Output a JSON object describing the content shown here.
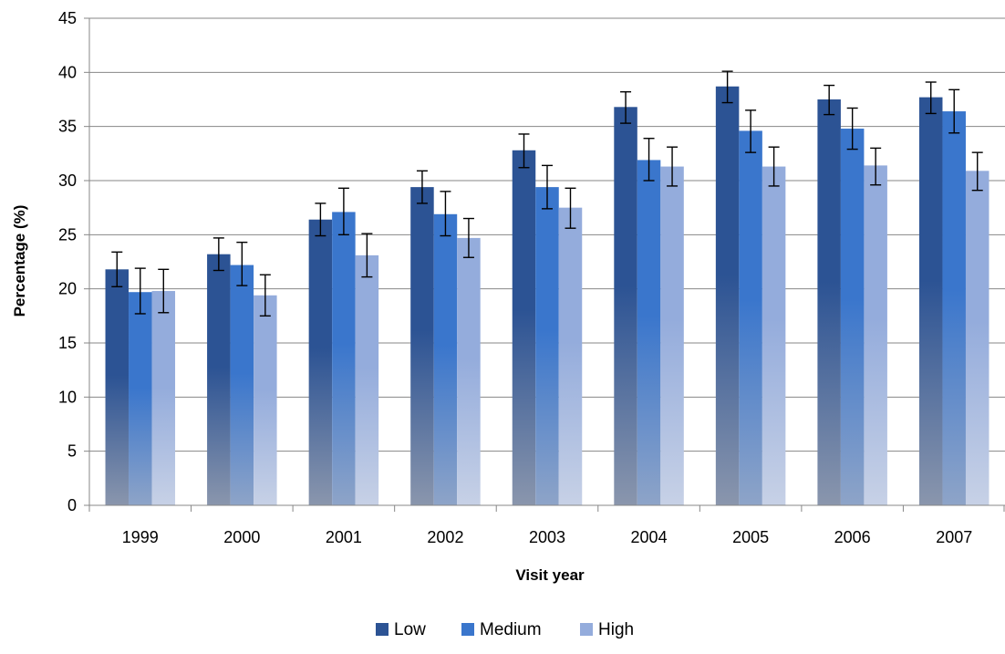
{
  "chart_data": {
    "type": "bar",
    "title": "",
    "xlabel": "Visit year",
    "ylabel": "Percentage (%)",
    "ylim": [
      0,
      45
    ],
    "yticks": [
      0,
      5,
      10,
      15,
      20,
      25,
      30,
      35,
      40,
      45
    ],
    "grid": true,
    "legend_position": "bottom",
    "error_bars": true,
    "categories": [
      "1999",
      "2000",
      "2001",
      "2002",
      "2003",
      "2004",
      "2005",
      "2006",
      "2007"
    ],
    "series": [
      {
        "name": "Low",
        "color": "#2c5394",
        "values": [
          21.8,
          23.2,
          26.4,
          29.4,
          32.8,
          36.8,
          38.7,
          37.5,
          37.7
        ],
        "error_low": [
          20.2,
          21.7,
          24.9,
          27.9,
          31.2,
          35.3,
          37.2,
          36.1,
          36.2
        ],
        "error_high": [
          23.4,
          24.7,
          27.9,
          30.9,
          34.3,
          38.2,
          40.1,
          38.8,
          39.1
        ]
      },
      {
        "name": "Medium",
        "color": "#3a76cc",
        "values": [
          19.7,
          22.2,
          27.1,
          26.9,
          29.4,
          31.9,
          34.6,
          34.8,
          36.4
        ],
        "error_low": [
          17.7,
          20.3,
          25.0,
          24.9,
          27.4,
          30.0,
          32.6,
          32.9,
          34.4
        ],
        "error_high": [
          21.9,
          24.3,
          29.3,
          29.0,
          31.4,
          33.9,
          36.5,
          36.7,
          38.4
        ]
      },
      {
        "name": "High",
        "color": "#94acdc",
        "values": [
          19.8,
          19.4,
          23.1,
          24.7,
          27.5,
          31.3,
          31.3,
          31.4,
          30.9
        ],
        "error_low": [
          17.8,
          17.5,
          21.1,
          22.9,
          25.6,
          29.5,
          29.5,
          29.6,
          29.1
        ],
        "error_high": [
          21.8,
          21.3,
          25.1,
          26.5,
          29.3,
          33.1,
          33.1,
          33.0,
          32.6
        ]
      }
    ]
  }
}
